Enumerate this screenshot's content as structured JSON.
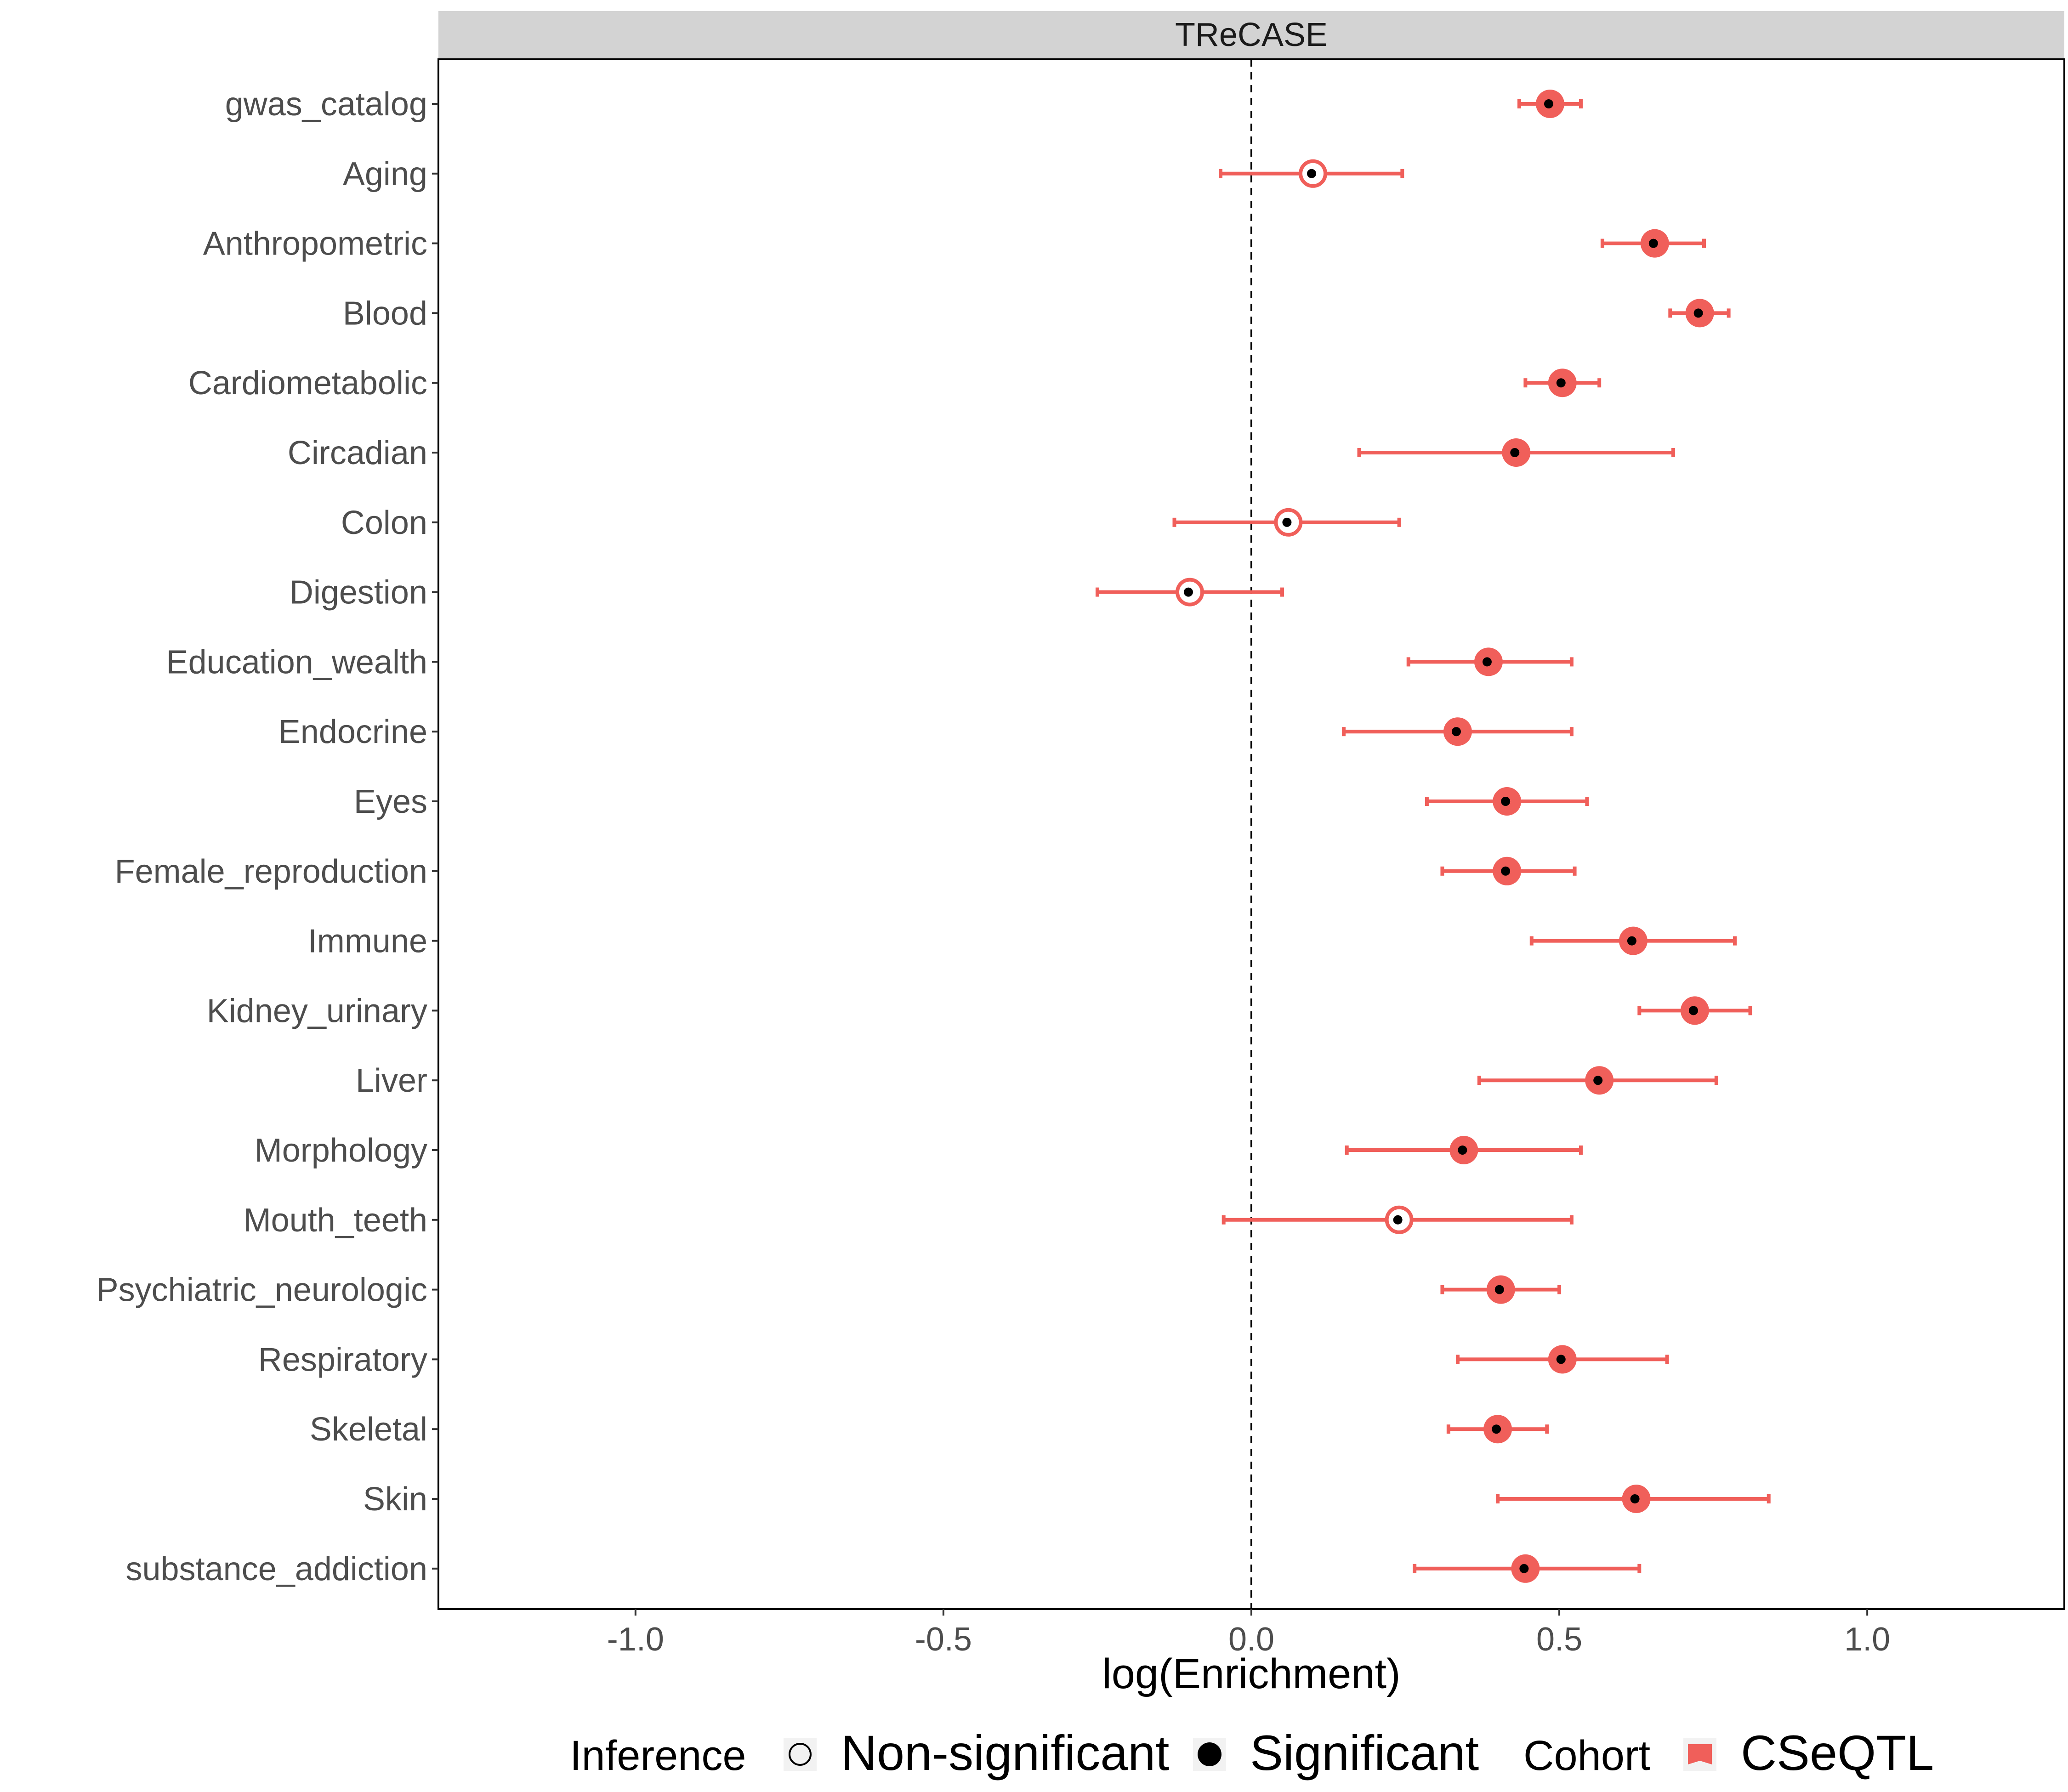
{
  "chart_data": {
    "type": "scatter",
    "facet_title": "TReCASE",
    "xlabel": "log(Enrichment)",
    "ylabel": "",
    "xlim": [
      -1.32,
      1.32
    ],
    "x_ticks": [
      -1.0,
      -0.5,
      0.0,
      0.5,
      1.0
    ],
    "x_tick_labels": [
      "-1.0",
      "-0.5",
      "0.0",
      "0.5",
      "1.0"
    ],
    "reference_line_x": 0,
    "grid": false,
    "legend_position": "bottom",
    "colors": {
      "series": "#f05f5a",
      "point_center": "#000000",
      "strip": "#d3d3d3"
    },
    "legend": {
      "inference_title": "Inference",
      "inference_items": [
        {
          "label": "Non-significant",
          "shape": "open-circle"
        },
        {
          "label": "Significant",
          "shape": "filled-circle"
        }
      ],
      "cohort_title": "Cohort",
      "cohort_items": [
        {
          "label": "CSeQTL",
          "color": "#f05f5a"
        }
      ]
    },
    "series": [
      {
        "name": "CSeQTL",
        "points": [
          {
            "category": "gwas_catalog",
            "estimate": 0.485,
            "low": 0.435,
            "high": 0.535,
            "inference": "Significant"
          },
          {
            "category": "Aging",
            "estimate": 0.1,
            "low": -0.05,
            "high": 0.245,
            "inference": "Non-significant"
          },
          {
            "category": "Anthropometric",
            "estimate": 0.655,
            "low": 0.57,
            "high": 0.735,
            "inference": "Significant"
          },
          {
            "category": "Blood",
            "estimate": 0.728,
            "low": 0.68,
            "high": 0.775,
            "inference": "Significant"
          },
          {
            "category": "Cardiometabolic",
            "estimate": 0.505,
            "low": 0.445,
            "high": 0.565,
            "inference": "Significant"
          },
          {
            "category": "Circadian",
            "estimate": 0.43,
            "low": 0.175,
            "high": 0.685,
            "inference": "Significant"
          },
          {
            "category": "Colon",
            "estimate": 0.06,
            "low": -0.125,
            "high": 0.24,
            "inference": "Non-significant"
          },
          {
            "category": "Digestion",
            "estimate": -0.1,
            "low": -0.25,
            "high": 0.05,
            "inference": "Non-significant"
          },
          {
            "category": "Education_wealth",
            "estimate": 0.385,
            "low": 0.255,
            "high": 0.52,
            "inference": "Significant"
          },
          {
            "category": "Endocrine",
            "estimate": 0.335,
            "low": 0.15,
            "high": 0.52,
            "inference": "Significant"
          },
          {
            "category": "Eyes",
            "estimate": 0.415,
            "low": 0.285,
            "high": 0.545,
            "inference": "Significant"
          },
          {
            "category": "Female_reproduction",
            "estimate": 0.415,
            "low": 0.31,
            "high": 0.525,
            "inference": "Significant"
          },
          {
            "category": "Immune",
            "estimate": 0.62,
            "low": 0.455,
            "high": 0.785,
            "inference": "Significant"
          },
          {
            "category": "Kidney_urinary",
            "estimate": 0.72,
            "low": 0.63,
            "high": 0.81,
            "inference": "Significant"
          },
          {
            "category": "Liver",
            "estimate": 0.565,
            "low": 0.37,
            "high": 0.755,
            "inference": "Significant"
          },
          {
            "category": "Morphology",
            "estimate": 0.345,
            "low": 0.155,
            "high": 0.535,
            "inference": "Significant"
          },
          {
            "category": "Mouth_teeth",
            "estimate": 0.24,
            "low": -0.045,
            "high": 0.52,
            "inference": "Non-significant"
          },
          {
            "category": "Psychiatric_neurologic",
            "estimate": 0.405,
            "low": 0.31,
            "high": 0.5,
            "inference": "Significant"
          },
          {
            "category": "Respiratory",
            "estimate": 0.505,
            "low": 0.335,
            "high": 0.675,
            "inference": "Significant"
          },
          {
            "category": "Skeletal",
            "estimate": 0.4,
            "low": 0.32,
            "high": 0.48,
            "inference": "Significant"
          },
          {
            "category": "Skin",
            "estimate": 0.625,
            "low": 0.4,
            "high": 0.84,
            "inference": "Significant"
          },
          {
            "category": "substance_addiction",
            "estimate": 0.445,
            "low": 0.265,
            "high": 0.63,
            "inference": "Significant"
          }
        ]
      }
    ]
  }
}
